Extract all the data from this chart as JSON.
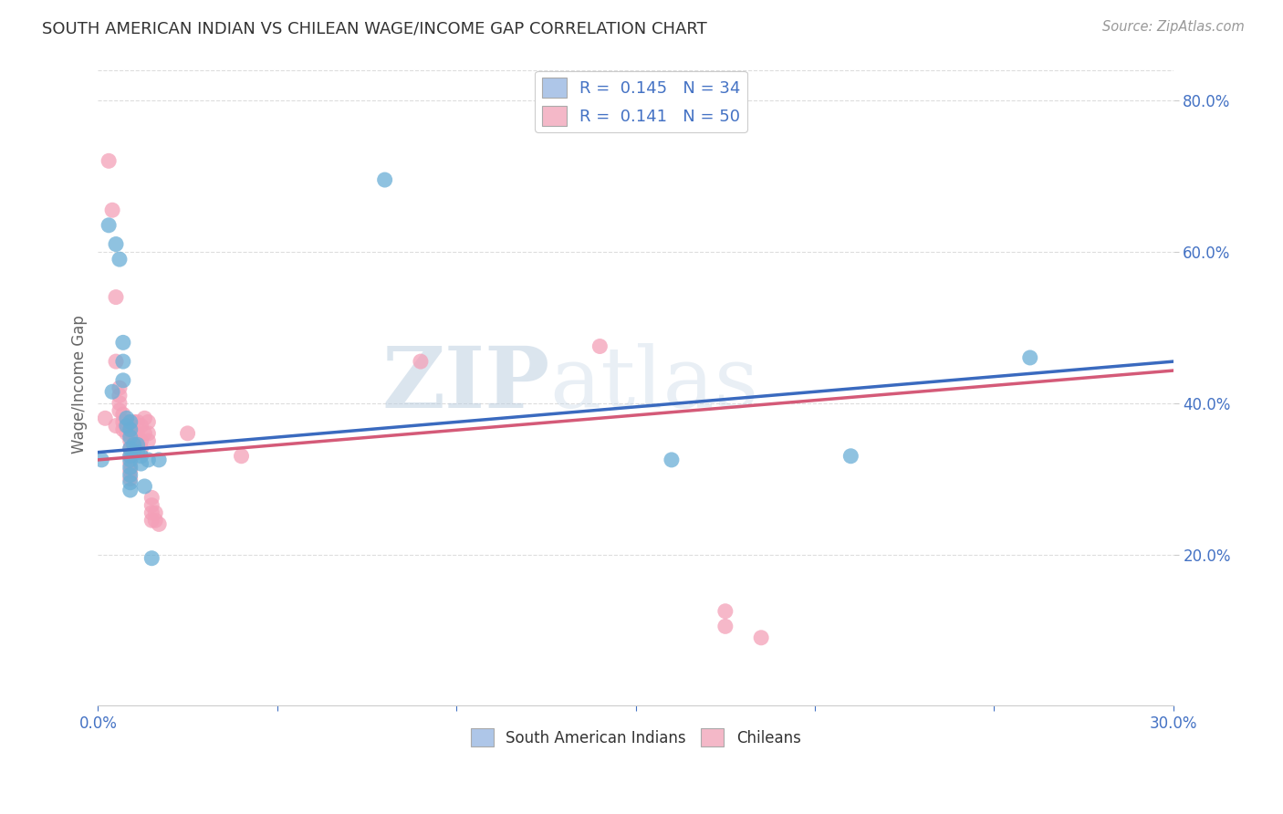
{
  "title": "SOUTH AMERICAN INDIAN VS CHILEAN WAGE/INCOME GAP CORRELATION CHART",
  "source": "Source: ZipAtlas.com",
  "ylabel": "Wage/Income Gap",
  "watermark": "ZIPatlas",
  "legend_group1": {
    "R": "0.145",
    "N": "34",
    "label": "South American Indians",
    "color": "#aec6e8"
  },
  "legend_group2": {
    "R": "0.141",
    "N": "50",
    "label": "Chileans",
    "color": "#f4b8c8"
  },
  "blue_scatter_color": "#6aaed6",
  "pink_scatter_color": "#f4a0b8",
  "blue_line_color": "#3a6abf",
  "pink_line_color": "#d45a78",
  "blue_scatter": [
    [
      0.001,
      0.325
    ],
    [
      0.003,
      0.635
    ],
    [
      0.004,
      0.415
    ],
    [
      0.005,
      0.61
    ],
    [
      0.006,
      0.59
    ],
    [
      0.007,
      0.48
    ],
    [
      0.007,
      0.455
    ],
    [
      0.007,
      0.43
    ],
    [
      0.008,
      0.38
    ],
    [
      0.008,
      0.37
    ],
    [
      0.009,
      0.375
    ],
    [
      0.009,
      0.365
    ],
    [
      0.009,
      0.355
    ],
    [
      0.009,
      0.34
    ],
    [
      0.009,
      0.33
    ],
    [
      0.009,
      0.325
    ],
    [
      0.009,
      0.315
    ],
    [
      0.009,
      0.305
    ],
    [
      0.009,
      0.295
    ],
    [
      0.009,
      0.285
    ],
    [
      0.01,
      0.345
    ],
    [
      0.01,
      0.335
    ],
    [
      0.011,
      0.345
    ],
    [
      0.011,
      0.335
    ],
    [
      0.012,
      0.33
    ],
    [
      0.012,
      0.32
    ],
    [
      0.013,
      0.29
    ],
    [
      0.014,
      0.325
    ],
    [
      0.015,
      0.195
    ],
    [
      0.017,
      0.325
    ],
    [
      0.08,
      0.695
    ],
    [
      0.16,
      0.325
    ],
    [
      0.21,
      0.33
    ],
    [
      0.26,
      0.46
    ]
  ],
  "pink_scatter": [
    [
      0.002,
      0.38
    ],
    [
      0.003,
      0.72
    ],
    [
      0.004,
      0.655
    ],
    [
      0.005,
      0.54
    ],
    [
      0.005,
      0.455
    ],
    [
      0.005,
      0.37
    ],
    [
      0.006,
      0.42
    ],
    [
      0.006,
      0.41
    ],
    [
      0.006,
      0.4
    ],
    [
      0.006,
      0.39
    ],
    [
      0.007,
      0.385
    ],
    [
      0.007,
      0.375
    ],
    [
      0.007,
      0.365
    ],
    [
      0.008,
      0.375
    ],
    [
      0.008,
      0.36
    ],
    [
      0.009,
      0.37
    ],
    [
      0.009,
      0.36
    ],
    [
      0.009,
      0.35
    ],
    [
      0.009,
      0.34
    ],
    [
      0.009,
      0.33
    ],
    [
      0.009,
      0.32
    ],
    [
      0.009,
      0.31
    ],
    [
      0.009,
      0.3
    ],
    [
      0.01,
      0.375
    ],
    [
      0.01,
      0.36
    ],
    [
      0.011,
      0.375
    ],
    [
      0.011,
      0.36
    ],
    [
      0.011,
      0.35
    ],
    [
      0.012,
      0.37
    ],
    [
      0.012,
      0.35
    ],
    [
      0.012,
      0.34
    ],
    [
      0.013,
      0.38
    ],
    [
      0.013,
      0.36
    ],
    [
      0.014,
      0.375
    ],
    [
      0.014,
      0.36
    ],
    [
      0.014,
      0.35
    ],
    [
      0.015,
      0.275
    ],
    [
      0.015,
      0.265
    ],
    [
      0.015,
      0.255
    ],
    [
      0.015,
      0.245
    ],
    [
      0.016,
      0.255
    ],
    [
      0.016,
      0.245
    ],
    [
      0.017,
      0.24
    ],
    [
      0.025,
      0.36
    ],
    [
      0.04,
      0.33
    ],
    [
      0.09,
      0.455
    ],
    [
      0.14,
      0.475
    ],
    [
      0.175,
      0.125
    ],
    [
      0.175,
      0.105
    ],
    [
      0.185,
      0.09
    ]
  ],
  "xlim": [
    0.0,
    0.3
  ],
  "ylim": [
    0.0,
    0.85
  ],
  "background_color": "#ffffff",
  "grid_color": "#dddddd"
}
